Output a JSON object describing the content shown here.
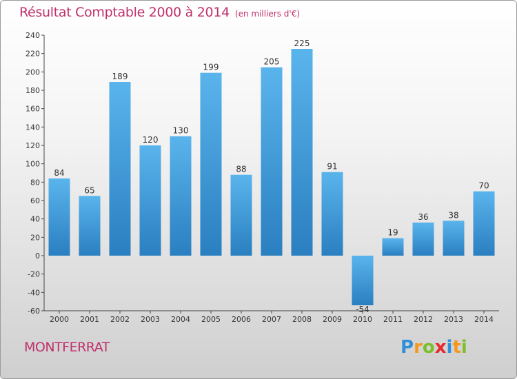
{
  "chart_data": {
    "type": "bar",
    "title": "Résultat Comptable 2000 à 2014",
    "subtitle": "(en milliers d'€)",
    "categories": [
      "2000",
      "2001",
      "2002",
      "2003",
      "2004",
      "2005",
      "2006",
      "2007",
      "2008",
      "2009",
      "2010",
      "2011",
      "2012",
      "2013",
      "2014"
    ],
    "values": [
      84,
      65,
      189,
      120,
      130,
      199,
      88,
      205,
      225,
      91,
      -54,
      19,
      36,
      38,
      70
    ],
    "ylim": [
      -60,
      240
    ],
    "yticks": [
      -60,
      -40,
      -20,
      0,
      20,
      40,
      60,
      80,
      100,
      120,
      140,
      160,
      180,
      200,
      220,
      240
    ],
    "grid": false,
    "xlabel": "",
    "ylabel": ""
  },
  "footer": {
    "commune": "MONTFERRAT",
    "logo_letters": [
      "P",
      "r",
      "o",
      "x",
      "i",
      "t",
      "i"
    ],
    "logo_colors": [
      "#2f8fd8",
      "#f39a1e",
      "#7bbf2a",
      "#e8282b",
      "#2f8fd8",
      "#f39a1e",
      "#7bbf2a"
    ]
  },
  "colors": {
    "bar_top": "#5ab4ec",
    "bar_bottom": "#2a7fc0",
    "title": "#c0306a"
  }
}
